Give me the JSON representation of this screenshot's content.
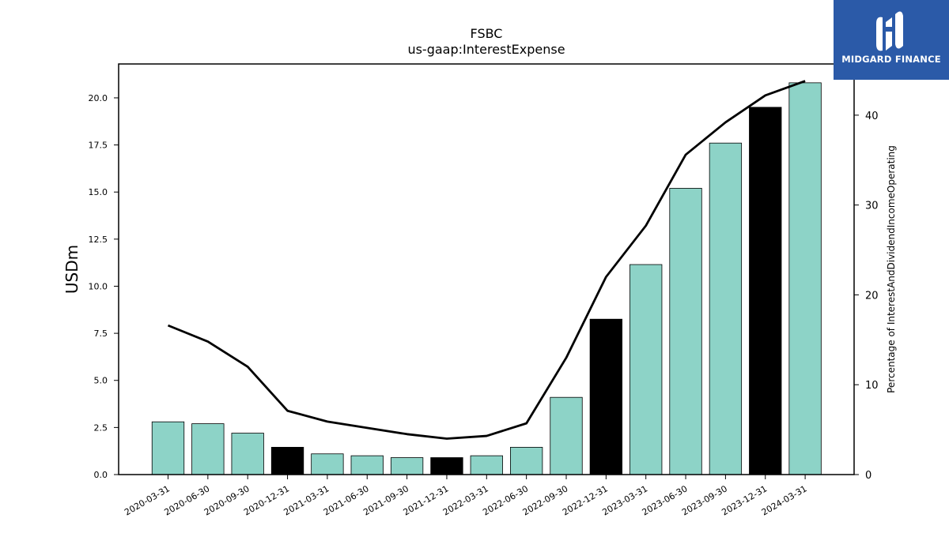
{
  "chart_data": {
    "type": "bar",
    "title": "FSBC",
    "subtitle": "us-gaap:InterestExpense",
    "ylabel": "USDm",
    "y2label": "Percentage of InterestAndDividendIncomeOperating",
    "categories": [
      "2020-03-31",
      "2020-06-30",
      "2020-09-30",
      "2020-12-31",
      "2021-03-31",
      "2021-06-30",
      "2021-09-30",
      "2021-12-31",
      "2022-03-31",
      "2022-06-30",
      "2022-09-30",
      "2022-12-31",
      "2023-03-31",
      "2023-06-30",
      "2023-09-30",
      "2023-12-31",
      "2024-03-31"
    ],
    "series": [
      {
        "type": "bar",
        "axis": "left",
        "values": [
          2.8,
          2.7,
          2.2,
          1.45,
          1.1,
          1.0,
          0.9,
          0.9,
          1.0,
          1.45,
          4.1,
          8.25,
          11.15,
          15.2,
          17.6,
          19.5,
          20.8
        ],
        "colors": [
          "#8dd3c7",
          "#8dd3c7",
          "#8dd3c7",
          "#000000",
          "#8dd3c7",
          "#8dd3c7",
          "#8dd3c7",
          "#000000",
          "#8dd3c7",
          "#8dd3c7",
          "#8dd3c7",
          "#000000",
          "#8dd3c7",
          "#8dd3c7",
          "#8dd3c7",
          "#000000",
          "#8dd3c7"
        ]
      },
      {
        "type": "line",
        "axis": "right",
        "color": "#000000",
        "values": [
          16.6,
          14.8,
          12.0,
          7.1,
          5.9,
          5.2,
          4.5,
          4.0,
          4.3,
          5.7,
          13.0,
          22.0,
          27.7,
          35.6,
          39.2,
          42.2,
          43.8
        ]
      }
    ],
    "ylim": [
      0,
      21.8
    ],
    "y2lim": [
      0,
      45.7
    ],
    "yticks": [
      "0.0",
      "2.5",
      "5.0",
      "7.5",
      "10.0",
      "12.5",
      "15.0",
      "17.5",
      "20.0"
    ],
    "y2ticks": [
      "0",
      "10",
      "20",
      "30",
      "40"
    ],
    "grid": false
  },
  "logo": {
    "text": "MIDGARD FINANCE",
    "icon": "midgard-logo-icon"
  }
}
